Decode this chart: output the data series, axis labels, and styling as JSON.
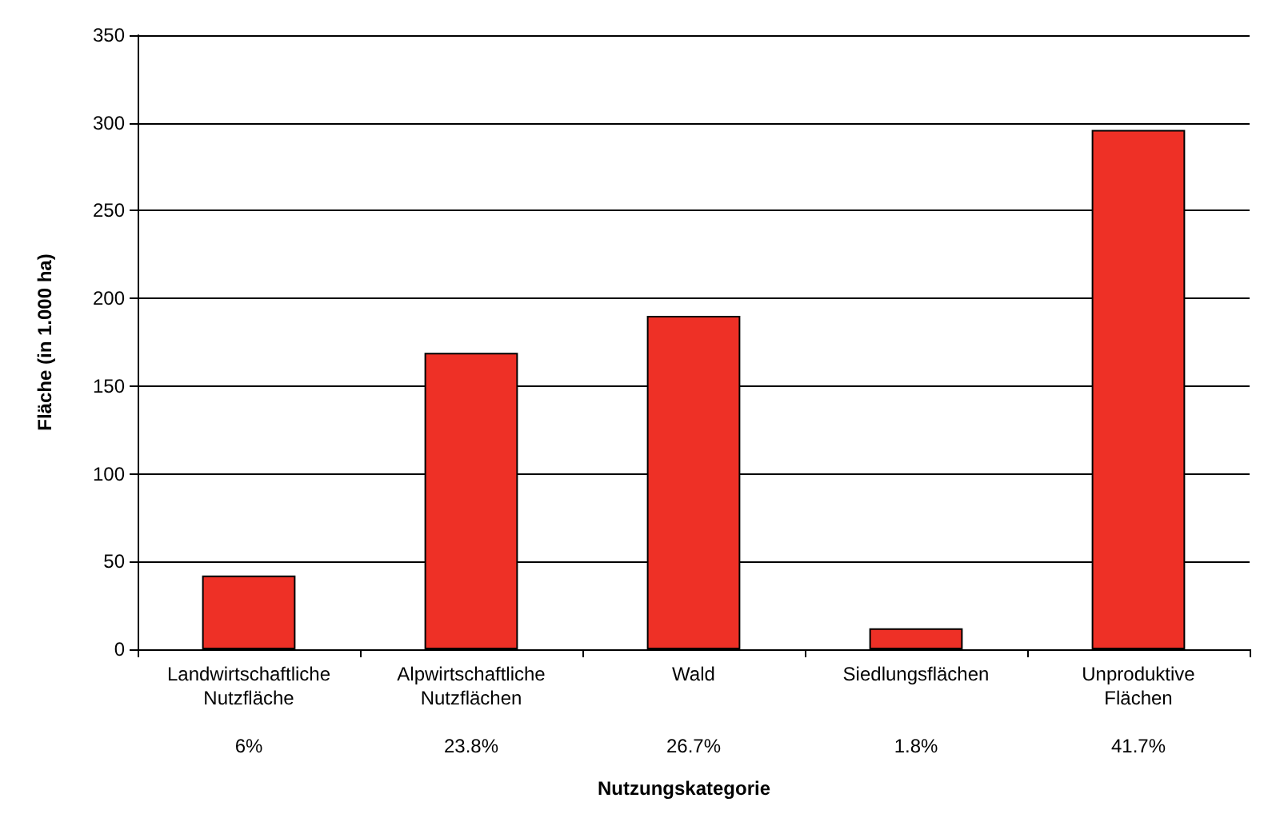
{
  "chart_data": {
    "type": "bar",
    "ylabel": "Fläche (in 1.000 ha)",
    "categories": [
      "Landwirtschaftliche\nNutzfläche\n\n6%",
      "Alpwirtschaftliche\nNutzflächen\n\n23.8%",
      "Wald\n\n\n26.7%",
      "Siedlungsflächen\n\n\n1.8%",
      "Unproduktive\nFlächen\n\n41.7%"
    ],
    "values": [
      42,
      169,
      190,
      12,
      296
    ],
    "color": "#ee3026",
    "ylim": [
      0,
      350
    ],
    "yticks": [
      0,
      50,
      100,
      150,
      200,
      250,
      300,
      350
    ],
    "grid": "y",
    "annotations": [
      "Nutzungskategorie"
    ]
  }
}
